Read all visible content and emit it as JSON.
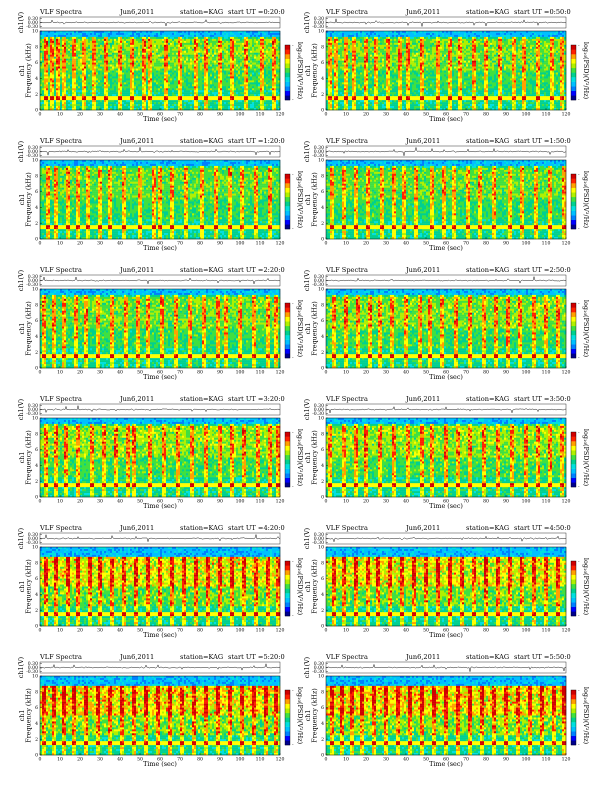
{
  "page": {
    "title": "",
    "layout": "6 rows x 2 columns"
  },
  "panel_header": {
    "left_text": "VLF Spectra",
    "date": "Jun6,2011",
    "station": "station=KAG",
    "start_prefix": "start UT"
  },
  "labels": {
    "ch1_axis": "ch1(V)",
    "spec_axis_line1": "ch1",
    "spec_axis_line2": "Frequency (kHz)",
    "xlabel": "Time (sec)",
    "colorbar_label": "log₁₀(PSD)(V²/Hz)"
  },
  "colors": {
    "scale": [
      "#00008b",
      "#0000ff",
      "#0080ff",
      "#00c0ff",
      "#00e0e0",
      "#00d090",
      "#40e040",
      "#b0f000",
      "#ffff00",
      "#ffa000",
      "#ff2000",
      "#d00000"
    ],
    "background": "#00c8e8"
  },
  "chart_data": [
    {
      "type": "heatmap",
      "title": "VLF Spectra",
      "date": "Jun6,2011",
      "station": "station=KAG",
      "start_ut": "=0:20:0",
      "xlabel": "Time (sec)",
      "ylabel": "Frequency (kHz)",
      "xlim": [
        0,
        120
      ],
      "ylim": [
        0,
        10
      ],
      "x_ticks": [
        0,
        10,
        20,
        30,
        40,
        50,
        60,
        70,
        80,
        90,
        100,
        110,
        120
      ],
      "y_ticks": [
        0,
        2,
        4,
        6,
        8,
        10
      ],
      "ch1_ylim": [
        -0.3,
        0.3
      ],
      "ch1_ticks": [
        "0.30",
        "0.00",
        "-0.30"
      ],
      "sferic_times_sec": [
        3,
        6,
        9,
        12,
        17,
        22,
        27,
        33,
        40,
        46,
        52,
        55,
        63,
        70,
        78,
        83,
        90,
        96,
        103,
        111,
        117
      ],
      "activity": 0.45,
      "band_top_khz": 9.2
    },
    {
      "type": "heatmap",
      "title": "VLF Spectra",
      "date": "Jun6,2011",
      "station": "station=KAG",
      "start_ut": "=0:50:0",
      "xlabel": "Time (sec)",
      "ylabel": "Frequency (kHz)",
      "xlim": [
        0,
        120
      ],
      "ylim": [
        0,
        10
      ],
      "x_ticks": [
        0,
        10,
        20,
        30,
        40,
        50,
        60,
        70,
        80,
        90,
        100,
        110,
        120
      ],
      "y_ticks": [
        0,
        2,
        4,
        6,
        8,
        10
      ],
      "ch1_ylim": [
        -0.3,
        0.3
      ],
      "ch1_ticks": [
        "0.30",
        "0.00",
        "-0.30"
      ],
      "sferic_times_sec": [
        2,
        5,
        10,
        14,
        20,
        25,
        31,
        37,
        41,
        48,
        56,
        62,
        67,
        74,
        80,
        87,
        94,
        99,
        106,
        113,
        118
      ],
      "activity": 0.4,
      "band_top_khz": 9.2
    },
    {
      "type": "heatmap",
      "title": "VLF Spectra",
      "date": "Jun6,2011",
      "station": "station=KAG",
      "start_ut": "=1:20:0",
      "xlabel": "Time (sec)",
      "ylabel": "Frequency (kHz)",
      "xlim": [
        0,
        120
      ],
      "ylim": [
        0,
        10
      ],
      "x_ticks": [
        0,
        10,
        20,
        30,
        40,
        50,
        60,
        70,
        80,
        90,
        100,
        110,
        120
      ],
      "y_ticks": [
        0,
        2,
        4,
        6,
        8,
        10
      ],
      "ch1_ylim": [
        -0.3,
        0.3
      ],
      "ch1_ticks": [
        "0.30",
        "0.00",
        "-0.30"
      ],
      "sferic_times_sec": [
        4,
        8,
        14,
        19,
        24,
        30,
        35,
        42,
        50,
        57,
        60,
        66,
        73,
        81,
        88,
        95,
        101,
        108,
        115
      ],
      "activity": 0.35,
      "band_top_khz": 9.2
    },
    {
      "type": "heatmap",
      "title": "VLF Spectra",
      "date": "Jun6,2011",
      "station": "station=KAG",
      "start_ut": "=1:50:0",
      "xlabel": "Time (sec)",
      "ylabel": "Frequency (kHz)",
      "xlim": [
        0,
        120
      ],
      "ylim": [
        0,
        10
      ],
      "x_ticks": [
        0,
        10,
        20,
        30,
        40,
        50,
        60,
        70,
        80,
        90,
        100,
        110,
        120
      ],
      "y_ticks": [
        0,
        2,
        4,
        6,
        8,
        10
      ],
      "ch1_ylim": [
        -0.3,
        0.3
      ],
      "ch1_ticks": [
        "0.30",
        "0.00",
        "-0.30"
      ],
      "sferic_times_sec": [
        3,
        9,
        15,
        21,
        28,
        34,
        39,
        45,
        53,
        59,
        64,
        71,
        77,
        84,
        92,
        98,
        105,
        112,
        119
      ],
      "activity": 0.35,
      "band_top_khz": 9.2
    },
    {
      "type": "heatmap",
      "title": "VLF Spectra",
      "date": "Jun6,2011",
      "station": "station=KAG",
      "start_ut": "=2:20:0",
      "xlabel": "Time (sec)",
      "ylabel": "Frequency (kHz)",
      "xlim": [
        0,
        120
      ],
      "ylim": [
        0,
        10
      ],
      "x_ticks": [
        0,
        10,
        20,
        30,
        40,
        50,
        60,
        70,
        80,
        90,
        100,
        110,
        120
      ],
      "y_ticks": [
        0,
        2,
        4,
        6,
        8,
        10
      ],
      "ch1_ylim": [
        -0.3,
        0.3
      ],
      "ch1_ticks": [
        "0.30",
        "0.00",
        "-0.30"
      ],
      "sferic_times_sec": [
        2,
        7,
        12,
        18,
        23,
        29,
        36,
        43,
        49,
        54,
        61,
        68,
        75,
        82,
        89,
        93,
        100,
        107,
        114,
        118
      ],
      "activity": 0.4,
      "band_top_khz": 9.2
    },
    {
      "type": "heatmap",
      "title": "VLF Spectra",
      "date": "Jun6,2011",
      "station": "station=KAG",
      "start_ut": "=2:50:0",
      "xlabel": "Time (sec)",
      "ylabel": "Frequency (kHz)",
      "xlim": [
        0,
        120
      ],
      "ylim": [
        0,
        10
      ],
      "x_ticks": [
        0,
        10,
        20,
        30,
        40,
        50,
        60,
        70,
        80,
        90,
        100,
        110,
        120
      ],
      "y_ticks": [
        0,
        2,
        4,
        6,
        8,
        10
      ],
      "ch1_ylim": [
        -0.3,
        0.3
      ],
      "ch1_ticks": [
        "0.30",
        "0.00",
        "-0.30"
      ],
      "sferic_times_sec": [
        4,
        10,
        16,
        22,
        27,
        33,
        40,
        47,
        52,
        58,
        65,
        72,
        79,
        85,
        91,
        97,
        104,
        110,
        116
      ],
      "activity": 0.45,
      "band_top_khz": 9.2
    },
    {
      "type": "heatmap",
      "title": "VLF Spectra",
      "date": "Jun6,2011",
      "station": "station=KAG",
      "start_ut": "=3:20:0",
      "xlabel": "Time (sec)",
      "ylabel": "Frequency (kHz)",
      "xlim": [
        0,
        120
      ],
      "ylim": [
        0,
        10
      ],
      "x_ticks": [
        0,
        10,
        20,
        30,
        40,
        50,
        60,
        70,
        80,
        90,
        100,
        110,
        120
      ],
      "y_ticks": [
        0,
        2,
        4,
        6,
        8,
        10
      ],
      "ch1_ylim": [
        -0.3,
        0.3
      ],
      "ch1_ticks": [
        "0.30",
        "0.00",
        "-0.30"
      ],
      "sferic_times_sec": [
        3,
        8,
        13,
        19,
        26,
        32,
        38,
        44,
        47,
        55,
        62,
        69,
        76,
        83,
        90,
        96,
        102,
        109,
        115,
        119
      ],
      "activity": 0.5,
      "band_top_khz": 9.2
    },
    {
      "type": "heatmap",
      "title": "VLF Spectra",
      "date": "Jun6,2011",
      "station": "station=KAG",
      "start_ut": "=3:50:0",
      "xlabel": "Time (sec)",
      "ylabel": "Frequency (kHz)",
      "xlim": [
        0,
        120
      ],
      "ylim": [
        0,
        10
      ],
      "x_ticks": [
        0,
        10,
        20,
        30,
        40,
        50,
        60,
        70,
        80,
        90,
        100,
        110,
        120
      ],
      "y_ticks": [
        0,
        2,
        4,
        6,
        8,
        10
      ],
      "ch1_ylim": [
        -0.3,
        0.3
      ],
      "ch1_ticks": [
        "0.30",
        "0.00",
        "-0.30"
      ],
      "sferic_times_sec": [
        2,
        9,
        15,
        20,
        27,
        34,
        41,
        48,
        53,
        60,
        66,
        72,
        79,
        86,
        93,
        100,
        106,
        112,
        118
      ],
      "activity": 0.5,
      "band_top_khz": 9.2
    },
    {
      "type": "heatmap",
      "title": "VLF Spectra",
      "date": "Jun6,2011",
      "station": "station=KAG",
      "start_ut": "=4:20:0",
      "xlabel": "Time (sec)",
      "ylabel": "Frequency (kHz)",
      "xlim": [
        0,
        120
      ],
      "ylim": [
        0,
        10
      ],
      "x_ticks": [
        0,
        10,
        20,
        30,
        40,
        50,
        60,
        70,
        80,
        90,
        100,
        110,
        120
      ],
      "y_ticks": [
        0,
        2,
        4,
        6,
        8,
        10
      ],
      "ch1_ylim": [
        -0.3,
        0.3
      ],
      "ch1_ticks": [
        "0.30",
        "0.00",
        "-0.30"
      ],
      "sferic_times_sec": [
        3,
        8,
        14,
        19,
        25,
        30,
        36,
        42,
        48,
        54,
        60,
        66,
        72,
        78,
        84,
        90,
        96,
        102,
        108,
        114,
        119
      ],
      "activity": 0.8,
      "band_top_khz": 8.8
    },
    {
      "type": "heatmap",
      "title": "VLF Spectra",
      "date": "Jun6,2011",
      "station": "station=KAG",
      "start_ut": "=4:50:0",
      "xlabel": "Time (sec)",
      "ylabel": "Frequency (kHz)",
      "xlim": [
        0,
        120
      ],
      "ylim": [
        0,
        10
      ],
      "x_ticks": [
        0,
        10,
        20,
        30,
        40,
        50,
        60,
        70,
        80,
        90,
        100,
        110,
        120
      ],
      "y_ticks": [
        0,
        2,
        4,
        6,
        8,
        10
      ],
      "ch1_ylim": [
        -0.3,
        0.3
      ],
      "ch1_ticks": [
        "0.30",
        "0.00",
        "-0.30"
      ],
      "sferic_times_sec": [
        4,
        9,
        15,
        21,
        26,
        32,
        38,
        44,
        50,
        56,
        62,
        68,
        74,
        80,
        86,
        92,
        98,
        104,
        110,
        116
      ],
      "activity": 0.8,
      "band_top_khz": 8.8
    },
    {
      "type": "heatmap",
      "title": "VLF Spectra",
      "date": "Jun6,2011",
      "station": "station=KAG",
      "start_ut": "=5:20:0",
      "xlabel": "Time (sec)",
      "ylabel": "Frequency (kHz)",
      "xlim": [
        0,
        120
      ],
      "ylim": [
        0,
        10
      ],
      "x_ticks": [
        0,
        10,
        20,
        30,
        40,
        50,
        60,
        70,
        80,
        90,
        100,
        110,
        120
      ],
      "y_ticks": [
        0,
        2,
        4,
        6,
        8,
        10
      ],
      "ch1_ylim": [
        -0.3,
        0.3
      ],
      "ch1_ticks": [
        "0.30",
        "0.00",
        "-0.30"
      ],
      "sferic_times_sec": [
        2,
        7,
        12,
        17,
        23,
        29,
        35,
        41,
        47,
        53,
        59,
        65,
        71,
        77,
        83,
        89,
        95,
        101,
        107,
        113,
        118
      ],
      "activity": 0.9,
      "band_top_khz": 8.8
    },
    {
      "type": "heatmap",
      "title": "VLF Spectra",
      "date": "Jun6,2011",
      "station": "station=KAG",
      "start_ut": "=5:50:0",
      "xlabel": "Time (sec)",
      "ylabel": "Frequency (kHz)",
      "xlim": [
        0,
        120
      ],
      "ylim": [
        0,
        10
      ],
      "x_ticks": [
        0,
        10,
        20,
        30,
        40,
        50,
        60,
        70,
        80,
        90,
        100,
        110,
        120
      ],
      "y_ticks": [
        0,
        2,
        4,
        6,
        8,
        10
      ],
      "ch1_ylim": [
        -0.3,
        0.3
      ],
      "ch1_ticks": [
        "0.30",
        "0.00",
        "-0.30"
      ],
      "sferic_times_sec": [
        3,
        8,
        13,
        18,
        24,
        30,
        36,
        42,
        48,
        54,
        60,
        66,
        72,
        78,
        84,
        90,
        96,
        102,
        108,
        114,
        119
      ],
      "activity": 0.9,
      "band_top_khz": 8.8
    }
  ]
}
